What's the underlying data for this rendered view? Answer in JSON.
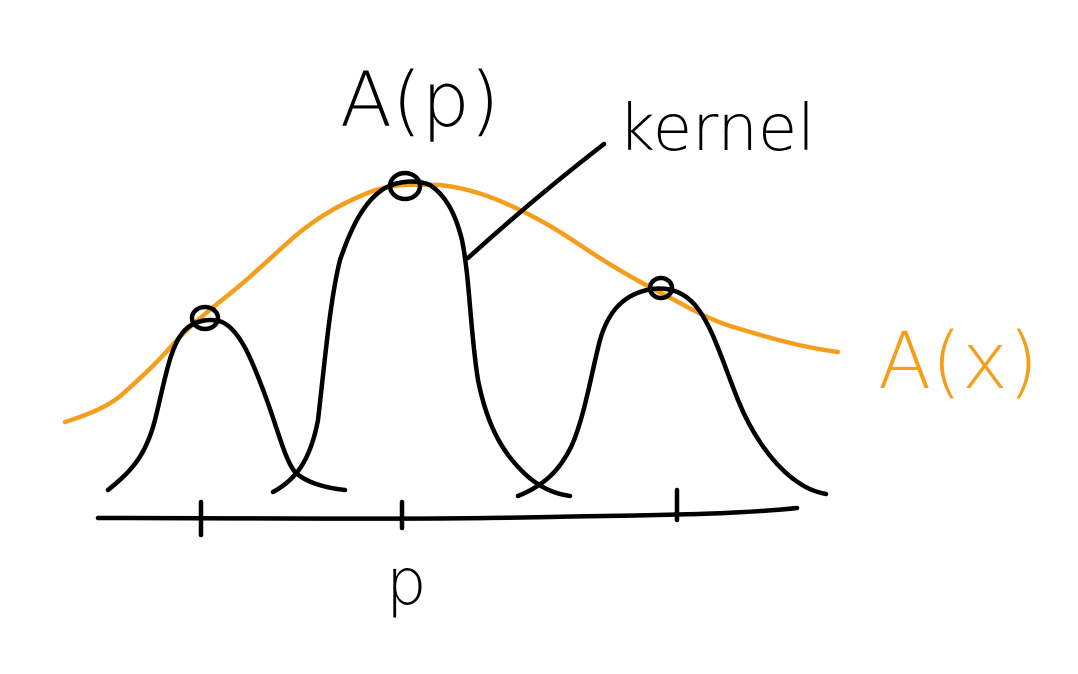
{
  "colors": {
    "ink": "#000000",
    "accent": "#f59e1c",
    "background": "#ffffff"
  },
  "labels": {
    "peak_value": "A(p)",
    "kernel": "kernel",
    "function": "A(x)",
    "point": "p"
  }
}
